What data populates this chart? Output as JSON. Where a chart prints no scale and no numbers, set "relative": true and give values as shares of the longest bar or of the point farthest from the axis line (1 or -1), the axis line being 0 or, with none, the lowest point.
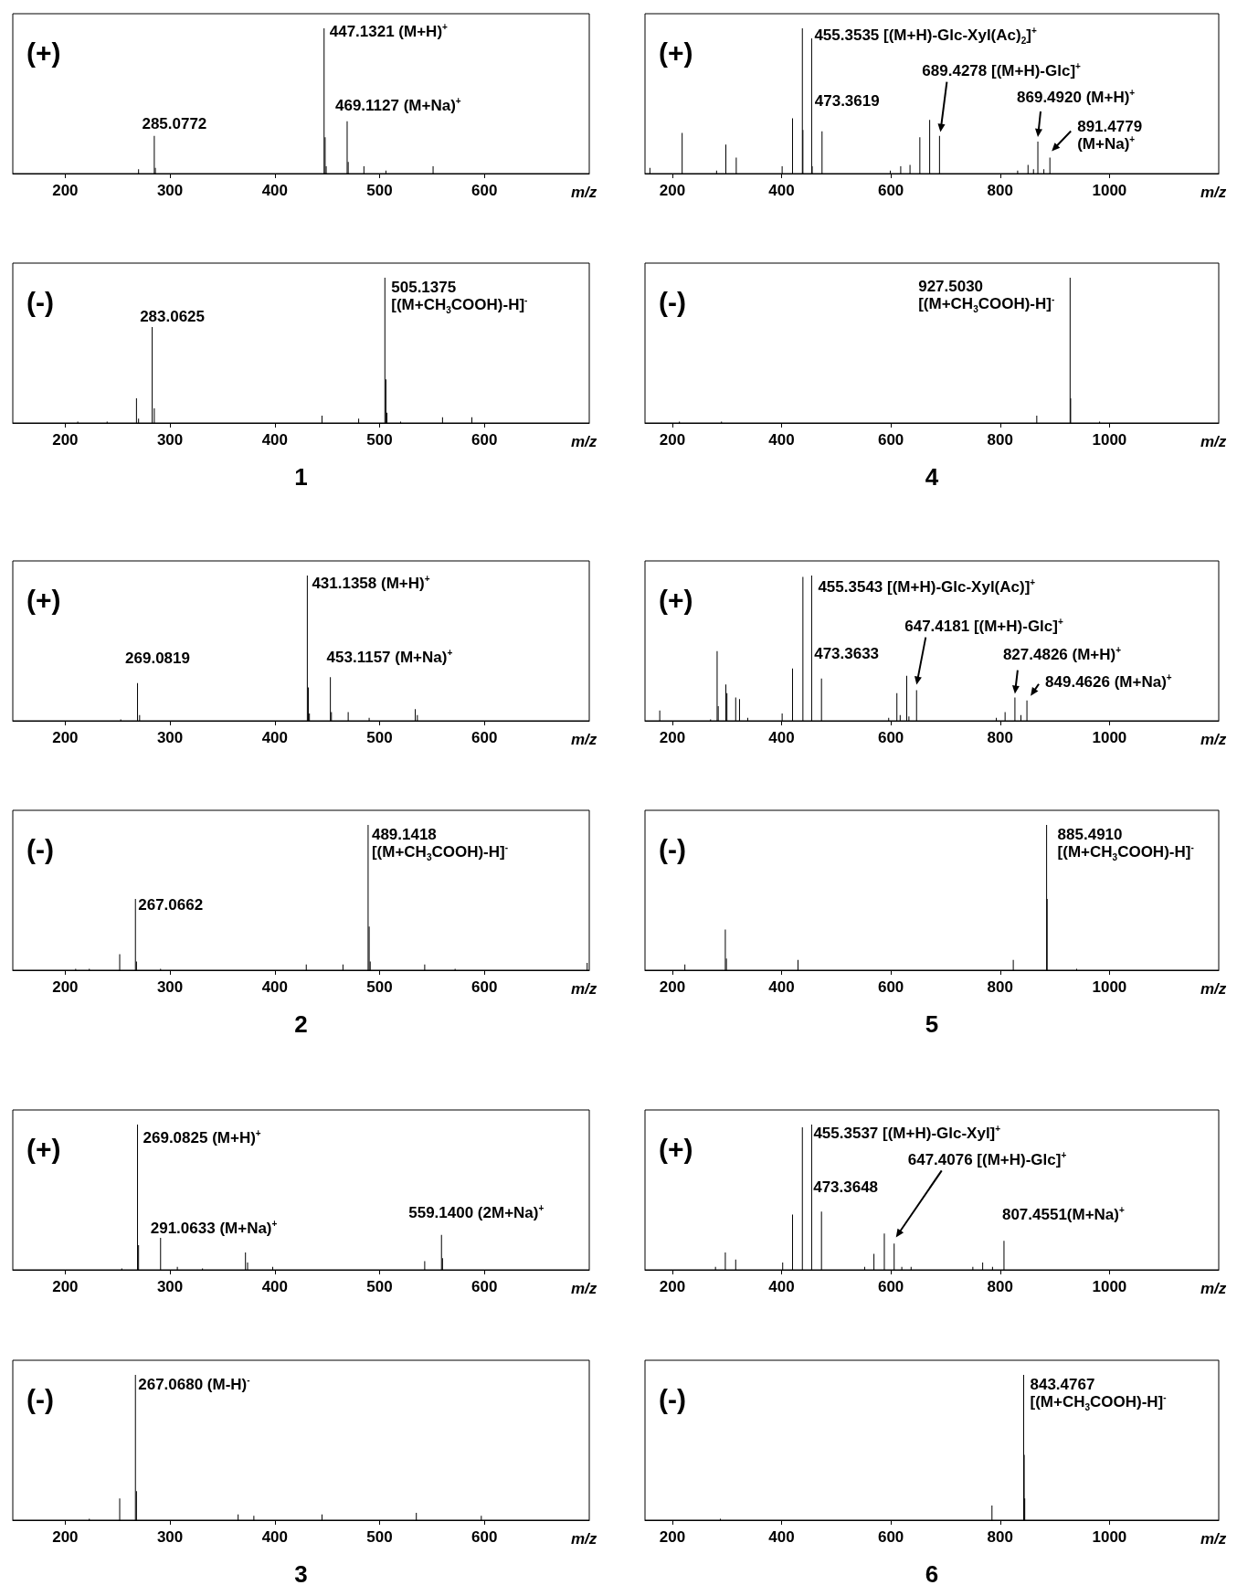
{
  "chart_data": [
    {
      "type": "bar",
      "title": "(+)",
      "xlabel": "m/z",
      "color": "#000000",
      "relative": true,
      "xlim": [
        150,
        700
      ],
      "xticks": [
        200,
        300,
        400,
        500,
        600
      ],
      "x": [
        270,
        285,
        286,
        447,
        448,
        449,
        469,
        470,
        485,
        506,
        551
      ],
      "values": [
        0.03,
        0.26,
        0.04,
        1,
        0.25,
        0.05,
        0.36,
        0.08,
        0.05,
        0.02,
        0.05
      ],
      "annotations": [
        {
          "text": "285.0772",
          "x": 285,
          "y": 0.26
        },
        {
          "text": "447.1321 (M+H)$^{+}$",
          "x": 447,
          "y": 1
        },
        {
          "text": "469.1127 (M+Na)$^{+}$",
          "x": 469,
          "y": 0.36
        }
      ]
    },
    {
      "type": "bar",
      "title": "(+)",
      "xlabel": "m/z",
      "color": "#000000",
      "relative": true,
      "xlim": [
        150,
        1200
      ],
      "xticks": [
        200,
        400,
        600,
        800,
        1000
      ],
      "x": [
        159,
        218,
        281,
        298,
        317,
        401,
        420,
        438,
        439,
        455,
        456,
        474,
        599,
        618,
        635,
        653,
        671,
        689,
        832,
        851,
        861,
        869,
        880,
        891
      ],
      "values": [
        0.04,
        0.28,
        0.02,
        0.2,
        0.11,
        0.05,
        0.38,
        1,
        0.3,
        0.93,
        0.05,
        0.29,
        0.02,
        0.05,
        0.06,
        0.25,
        0.37,
        0.26,
        0.02,
        0.06,
        0.03,
        0.22,
        0.03,
        0.11
      ],
      "annotations": [
        {
          "text": "455.3535 [(M+H)-Glc-Xyl(Ac)$_{2}$]$^{+}$",
          "x": 455,
          "y": 0.93
        },
        {
          "text": "473.3619",
          "x": 474,
          "y": 0.29
        },
        "689.4278 [(M+H)-Glc]$^{+}$",
        {
          "text": "869.4920 (M+H)$^{+}$",
          "x": 869,
          "y": 0.22
        },
        {
          "text": "891.4779\n(M+Na)$^{+}$",
          "x": 891,
          "y": 0.11
        }
      ]
    },
    {
      "type": "bar",
      "title": "(-)",
      "xlabel": "m/z",
      "color": "#000000",
      "relative": true,
      "xlim": [
        150,
        700
      ],
      "xticks": [
        200,
        300,
        400,
        500,
        600
      ],
      "x": [
        212,
        240,
        268,
        270,
        283,
        285,
        445,
        480,
        505,
        506,
        507,
        520,
        560,
        588
      ],
      "values": [
        0.01,
        0.01,
        0.17,
        0.03,
        0.66,
        0.1,
        0.05,
        0.03,
        1,
        0.3,
        0.07,
        0.01,
        0.04,
        0.04
      ],
      "annotations": [
        {
          "text": "283.0625",
          "x": 283,
          "y": 0.66
        },
        {
          "text": "505.1375\n[(M+CH$_{3}$COOH)-H]$^{-}$",
          "x": 505,
          "y": 1
        },
        "1"
      ]
    },
    {
      "type": "bar",
      "title": "(-)",
      "xlabel": "m/z",
      "color": "#000000",
      "relative": true,
      "xlim": [
        150,
        1200
      ],
      "xticks": [
        200,
        400,
        600,
        800,
        1000
      ],
      "x": [
        213,
        290,
        867,
        928,
        929,
        982
      ],
      "values": [
        0.01,
        0.01,
        0.05,
        1,
        0.17,
        0.01
      ],
      "annotations": [
        {
          "text": "927.5030\n[(M+CH$_{3}$COOH)-H]$^{-}$",
          "x": 928,
          "y": 1
        },
        "4"
      ]
    },
    {
      "type": "bar",
      "title": "(+)",
      "xlabel": "m/z",
      "color": "#000000",
      "relative": true,
      "xlim": [
        150,
        700
      ],
      "xticks": [
        200,
        300,
        400,
        500,
        600
      ],
      "x": [
        253,
        269,
        271,
        431,
        432,
        433,
        453,
        454,
        470,
        490,
        534,
        536
      ],
      "values": [
        0.01,
        0.26,
        0.04,
        1,
        0.23,
        0.05,
        0.3,
        0.06,
        0.06,
        0.02,
        0.08,
        0.04
      ],
      "annotations": [
        {
          "text": "269.0819",
          "x": 269,
          "y": 0.26
        },
        {
          "text": "431.1358 (M+H)$^{+}$",
          "x": 431,
          "y": 1
        },
        {
          "text": "453.1157 (M+Na)$^{+}$",
          "x": 453,
          "y": 0.3
        }
      ]
    },
    {
      "type": "bar",
      "title": "(+)",
      "xlabel": "m/z",
      "color": "#000000",
      "relative": true,
      "xlim": [
        150,
        1200
      ],
      "xticks": [
        200,
        400,
        600,
        800,
        1000
      ],
      "x": [
        177,
        270,
        282,
        284,
        298,
        300,
        316,
        323,
        338,
        401,
        420,
        439,
        455,
        473,
        596,
        611,
        617,
        629,
        633,
        647,
        793,
        809,
        827,
        838,
        849
      ],
      "values": [
        0.07,
        0.01,
        0.48,
        0.1,
        0.25,
        0.19,
        0.16,
        0.15,
        0.02,
        0.05,
        0.36,
        0.99,
        1,
        0.29,
        0.02,
        0.19,
        0.04,
        0.31,
        0.03,
        0.21,
        0.02,
        0.06,
        0.16,
        0.04,
        0.14
      ],
      "annotations": [
        {
          "text": "455.3543 [(M+H)-Glc-Xyl(Ac)]$^{+}$",
          "x": 455,
          "y": 1
        },
        {
          "text": "473.3633",
          "x": 473,
          "y": 0.29
        },
        "647.4181 [(M+H)-Glc]$^{+}$",
        {
          "text": "827.4826 (M+H)$^{+}$",
          "x": 827,
          "y": 0.16
        },
        {
          "text": "849.4626 (M+Na)$^{+}$",
          "x": 849,
          "y": 0.14
        }
      ]
    },
    {
      "type": "bar",
      "title": "(-)",
      "xlabel": "m/z",
      "color": "#000000",
      "relative": true,
      "xlim": [
        150,
        700
      ],
      "xticks": [
        200,
        300,
        400,
        500,
        600
      ],
      "x": [
        210,
        223,
        252,
        267,
        268,
        291,
        430,
        465,
        489,
        490,
        491,
        543,
        572,
        698
      ],
      "values": [
        0.01,
        0.01,
        0.11,
        0.49,
        0.06,
        0.01,
        0.04,
        0.04,
        1,
        0.3,
        0.06,
        0.04,
        0.01,
        0.05
      ],
      "annotations": [
        {
          "text": "267.0662",
          "x": 267,
          "y": 0.49
        },
        {
          "text": "489.1418\n[(M+CH$_{3}$COOH)-H]$^{-}$",
          "x": 489,
          "y": 1
        },
        "2"
      ]
    },
    {
      "type": "bar",
      "title": "(-)",
      "xlabel": "m/z",
      "color": "#000000",
      "relative": true,
      "xlim": [
        150,
        1200
      ],
      "xticks": [
        200,
        400,
        600,
        800,
        1000
      ],
      "x": [
        223,
        297,
        299,
        430,
        824,
        885,
        886,
        940
      ],
      "values": [
        0.04,
        0.28,
        0.08,
        0.07,
        0.07,
        1,
        0.49,
        0.01
      ],
      "annotations": [
        {
          "text": "885.4910\n[(M+CH$_{3}$COOH)-H]$^{-}$",
          "x": 885,
          "y": 1
        },
        "5"
      ]
    },
    {
      "type": "bar",
      "title": "(+)",
      "xlabel": "m/z",
      "color": "#000000",
      "relative": true,
      "xlim": [
        150,
        700
      ],
      "xticks": [
        200,
        300,
        400,
        500,
        600
      ],
      "x": [
        254,
        269,
        270,
        291,
        307,
        331,
        372,
        374,
        398,
        543,
        559,
        560
      ],
      "values": [
        0.01,
        1,
        0.17,
        0.22,
        0.02,
        0.01,
        0.12,
        0.05,
        0.02,
        0.06,
        0.24,
        0.08
      ],
      "annotations": [
        {
          "text": "269.0825 (M+H)$^{+}$",
          "x": 269,
          "y": 1
        },
        {
          "text": "291.0633 (M+Na)$^{+}$",
          "x": 291,
          "y": 0.22
        },
        {
          "text": "559.1400 (2M+Na)$^{+}$",
          "x": 559,
          "y": 0.24
        }
      ]
    },
    {
      "type": "bar",
      "title": "(+)",
      "xlabel": "m/z",
      "color": "#000000",
      "relative": true,
      "xlim": [
        150,
        1200
      ],
      "xticks": [
        200,
        400,
        600,
        800,
        1000
      ],
      "x": [
        279,
        297,
        316,
        402,
        420,
        438,
        455,
        473,
        552,
        569,
        588,
        606,
        620,
        637,
        750,
        768,
        786,
        807
      ],
      "values": [
        0.02,
        0.12,
        0.07,
        0.05,
        0.38,
        0.98,
        1,
        0.4,
        0.02,
        0.11,
        0.25,
        0.18,
        0.02,
        0.02,
        0.02,
        0.05,
        0.02,
        0.2
      ],
      "annotations": [
        {
          "text": "455.3537 [(M+H)-Glc-Xyl]$^{+}$",
          "x": 455,
          "y": 1
        },
        {
          "text": "473.3648",
          "x": 473,
          "y": 0.4
        },
        "647.4076 [(M+H)-Glc]$^{+}$",
        {
          "text": "807.4551(M+Na)$^{+}$",
          "x": 807,
          "y": 0.2
        }
      ]
    },
    {
      "type": "bar",
      "title": "(-)",
      "xlabel": "m/z",
      "color": "#000000",
      "relative": true,
      "xlim": [
        150,
        700
      ],
      "xticks": [
        200,
        300,
        400,
        500,
        600
      ],
      "x": [
        223,
        252,
        267,
        268,
        365,
        380,
        445,
        535,
        597
      ],
      "values": [
        0.01,
        0.15,
        1,
        0.2,
        0.04,
        0.03,
        0.04,
        0.05,
        0.03
      ],
      "annotations": [
        {
          "text": "267.0680 (M-H)$^{-}$",
          "x": 267,
          "y": 1
        },
        "3"
      ]
    },
    {
      "type": "bar",
      "title": "(-)",
      "xlabel": "m/z",
      "color": "#000000",
      "relative": true,
      "xlim": [
        150,
        1200
      ],
      "xticks": [
        200,
        400,
        600,
        800,
        1000
      ],
      "x": [
        288,
        785,
        843,
        844,
        845
      ],
      "values": [
        0.01,
        0.1,
        1,
        0.45,
        0.15
      ],
      "annotations": [
        {
          "text": "843.4767\n[(M+CH$_{3}$COOH)-H]$^{-}$",
          "x": 843,
          "y": 1
        },
        "6"
      ]
    }
  ]
}
